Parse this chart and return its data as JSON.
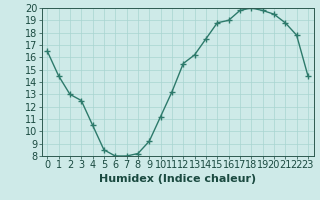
{
  "x": [
    0,
    1,
    2,
    3,
    4,
    5,
    6,
    7,
    8,
    9,
    10,
    11,
    12,
    13,
    14,
    15,
    16,
    17,
    18,
    19,
    20,
    21,
    22,
    23
  ],
  "y": [
    16.5,
    14.5,
    13.0,
    12.5,
    10.5,
    8.5,
    8.0,
    8.0,
    8.2,
    9.2,
    11.2,
    13.2,
    15.5,
    16.2,
    17.5,
    18.8,
    19.0,
    19.8,
    20.0,
    19.8,
    19.5,
    18.8,
    17.8,
    14.5
  ],
  "line_color": "#2d7a6b",
  "marker": "+",
  "marker_size": 4,
  "bg_color": "#ceeae8",
  "grid_color": "#a8d5d0",
  "xlabel": "Humidex (Indice chaleur)",
  "xlim": [
    -0.5,
    23.5
  ],
  "ylim": [
    8,
    20
  ],
  "yticks": [
    8,
    9,
    10,
    11,
    12,
    13,
    14,
    15,
    16,
    17,
    18,
    19,
    20
  ],
  "xtick_labels": [
    "0",
    "1",
    "2",
    "3",
    "4",
    "5",
    "6",
    "7",
    "8",
    "9",
    "10",
    "11",
    "12",
    "13",
    "14",
    "15",
    "16",
    "17",
    "18",
    "19",
    "20",
    "21",
    "22",
    "23"
  ],
  "xlabel_fontsize": 8,
  "tick_fontsize": 7,
  "line_width": 1.0,
  "marker_edge_width": 1.0
}
